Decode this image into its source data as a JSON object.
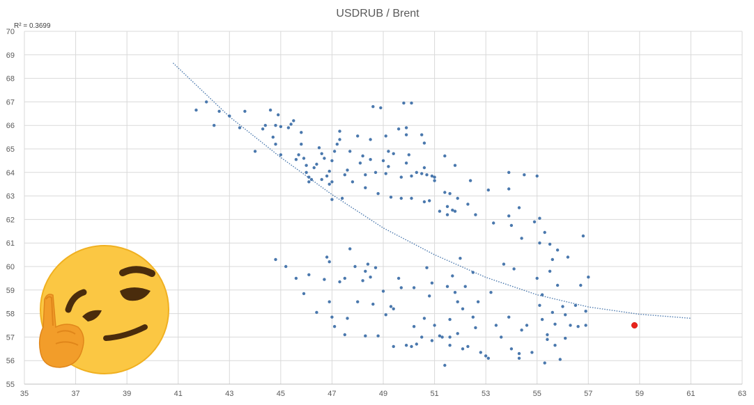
{
  "chart_data": {
    "type": "scatter",
    "title": "USDRUB / Brent",
    "annotation": "R² = 0.3699",
    "xlabel": "",
    "ylabel": "",
    "xlim": [
      35,
      63
    ],
    "ylim": [
      55,
      70
    ],
    "x_ticks": [
      35,
      37,
      39,
      41,
      43,
      45,
      47,
      49,
      51,
      53,
      55,
      57,
      59,
      61,
      63
    ],
    "y_ticks": [
      55,
      56,
      57,
      58,
      59,
      60,
      61,
      62,
      63,
      64,
      65,
      66,
      67,
      68,
      69,
      70
    ],
    "grid": true,
    "legend": "none",
    "colors": {
      "points": "#4a78ad",
      "trendline": "#4a78ad",
      "highlight": "#e8231b",
      "grid": "#d9d9d9"
    },
    "trendline": {
      "style": "dotted",
      "fit": "polynomial",
      "points": [
        [
          40.8,
          68.65
        ],
        [
          43,
          66.37
        ],
        [
          45,
          64.64
        ],
        [
          47,
          63.06
        ],
        [
          49,
          61.64
        ],
        [
          51,
          60.5
        ],
        [
          53,
          59.54
        ],
        [
          55,
          58.8
        ],
        [
          57,
          58.28
        ],
        [
          59,
          57.97
        ],
        [
          61,
          57.8
        ]
      ]
    },
    "highlight_point": {
      "x": 58.8,
      "y": 57.5
    },
    "points": [
      [
        41.7,
        66.65
      ],
      [
        42.1,
        67.0
      ],
      [
        42.4,
        66.0
      ],
      [
        42.6,
        66.6
      ],
      [
        43.0,
        66.4
      ],
      [
        43.4,
        65.9
      ],
      [
        43.6,
        66.6
      ],
      [
        44.0,
        64.9
      ],
      [
        44.3,
        65.85
      ],
      [
        44.4,
        66.0
      ],
      [
        44.6,
        66.65
      ],
      [
        44.7,
        65.5
      ],
      [
        44.8,
        65.2
      ],
      [
        44.8,
        66.0
      ],
      [
        44.9,
        66.45
      ],
      [
        45.0,
        65.95
      ],
      [
        45.0,
        64.75
      ],
      [
        45.3,
        65.9
      ],
      [
        45.4,
        66.05
      ],
      [
        45.5,
        66.2
      ],
      [
        45.6,
        64.55
      ],
      [
        45.7,
        64.75
      ],
      [
        45.8,
        65.2
      ],
      [
        45.8,
        65.7
      ],
      [
        45.9,
        64.6
      ],
      [
        46.0,
        64.3
      ],
      [
        46.0,
        64.0
      ],
      [
        46.1,
        63.8
      ],
      [
        46.1,
        63.6
      ],
      [
        46.2,
        63.7
      ],
      [
        46.3,
        64.2
      ],
      [
        46.4,
        64.35
      ],
      [
        46.5,
        65.05
      ],
      [
        46.6,
        63.7
      ],
      [
        46.6,
        64.8
      ],
      [
        46.7,
        64.6
      ],
      [
        46.8,
        63.85
      ],
      [
        46.9,
        64.05
      ],
      [
        46.9,
        63.5
      ],
      [
        47.0,
        64.5
      ],
      [
        47.0,
        63.6
      ],
      [
        47.1,
        64.9
      ],
      [
        47.2,
        65.2
      ],
      [
        47.3,
        65.75
      ],
      [
        47.3,
        65.4
      ],
      [
        47.5,
        63.9
      ],
      [
        47.6,
        64.1
      ],
      [
        47.7,
        64.9
      ],
      [
        47.8,
        63.6
      ],
      [
        47.0,
        62.85
      ],
      [
        47.4,
        62.9
      ],
      [
        48.0,
        65.55
      ],
      [
        48.1,
        64.4
      ],
      [
        48.2,
        64.7
      ],
      [
        48.3,
        63.9
      ],
      [
        48.3,
        63.35
      ],
      [
        48.5,
        65.4
      ],
      [
        48.5,
        64.55
      ],
      [
        48.6,
        66.8
      ],
      [
        48.7,
        64.0
      ],
      [
        48.8,
        63.1
      ],
      [
        48.9,
        66.75
      ],
      [
        49.0,
        64.5
      ],
      [
        49.1,
        65.55
      ],
      [
        49.1,
        63.95
      ],
      [
        49.2,
        64.9
      ],
      [
        49.2,
        64.25
      ],
      [
        49.3,
        62.95
      ],
      [
        49.4,
        64.8
      ],
      [
        49.6,
        65.85
      ],
      [
        49.7,
        63.8
      ],
      [
        49.7,
        62.9
      ],
      [
        49.8,
        66.95
      ],
      [
        49.9,
        65.9
      ],
      [
        49.9,
        65.6
      ],
      [
        49.9,
        64.4
      ],
      [
        50.0,
        64.75
      ],
      [
        50.1,
        63.85
      ],
      [
        50.1,
        62.9
      ],
      [
        50.1,
        66.95
      ],
      [
        50.3,
        64.0
      ],
      [
        50.5,
        63.95
      ],
      [
        50.5,
        65.6
      ],
      [
        50.6,
        65.25
      ],
      [
        50.6,
        64.2
      ],
      [
        50.7,
        63.9
      ],
      [
        50.9,
        63.85
      ],
      [
        50.8,
        62.8
      ],
      [
        50.6,
        62.75
      ],
      [
        51.0,
        63.65
      ],
      [
        51.0,
        63.8
      ],
      [
        51.2,
        62.35
      ],
      [
        51.4,
        63.15
      ],
      [
        51.4,
        64.7
      ],
      [
        51.5,
        62.55
      ],
      [
        51.5,
        62.2
      ],
      [
        51.6,
        63.1
      ],
      [
        51.7,
        62.4
      ],
      [
        51.8,
        62.35
      ],
      [
        51.8,
        64.3
      ],
      [
        51.9,
        62.9
      ],
      [
        52.3,
        62.65
      ],
      [
        52.4,
        63.65
      ],
      [
        52.6,
        62.2
      ],
      [
        53.1,
        63.25
      ],
      [
        53.3,
        61.85
      ],
      [
        53.9,
        64.0
      ],
      [
        53.9,
        63.3
      ],
      [
        53.9,
        62.15
      ],
      [
        54.0,
        61.75
      ],
      [
        54.3,
        62.5
      ],
      [
        54.4,
        61.2
      ],
      [
        54.5,
        63.9
      ],
      [
        54.9,
        61.9
      ],
      [
        55.1,
        62.05
      ],
      [
        55.0,
        63.85
      ],
      [
        55.3,
        61.45
      ],
      [
        55.1,
        61.0
      ],
      [
        55.5,
        60.95
      ],
      [
        55.8,
        60.7
      ],
      [
        44.8,
        60.3
      ],
      [
        45.2,
        60.0
      ],
      [
        45.6,
        59.5
      ],
      [
        45.9,
        58.85
      ],
      [
        46.1,
        59.65
      ],
      [
        46.7,
        59.45
      ],
      [
        46.8,
        60.4
      ],
      [
        46.9,
        60.2
      ],
      [
        46.9,
        58.5
      ],
      [
        47.0,
        57.85
      ],
      [
        47.1,
        57.45
      ],
      [
        47.3,
        59.35
      ],
      [
        47.5,
        59.5
      ],
      [
        47.6,
        57.8
      ],
      [
        47.7,
        60.75
      ],
      [
        47.9,
        60.0
      ],
      [
        48.0,
        58.5
      ],
      [
        48.2,
        59.4
      ],
      [
        48.3,
        59.8
      ],
      [
        48.4,
        60.1
      ],
      [
        48.5,
        59.55
      ],
      [
        48.6,
        58.4
      ],
      [
        48.7,
        59.95
      ],
      [
        48.8,
        57.05
      ],
      [
        49.0,
        58.95
      ],
      [
        49.1,
        57.95
      ],
      [
        49.3,
        58.3
      ],
      [
        49.4,
        56.6
      ],
      [
        49.6,
        59.5
      ],
      [
        49.7,
        59.1
      ],
      [
        49.9,
        56.65
      ],
      [
        50.1,
        56.6
      ],
      [
        50.2,
        57.45
      ],
      [
        50.3,
        56.7
      ],
      [
        50.5,
        57.0
      ],
      [
        50.6,
        57.8
      ],
      [
        50.7,
        59.95
      ],
      [
        50.8,
        58.75
      ],
      [
        50.9,
        59.3
      ],
      [
        51.0,
        57.5
      ],
      [
        51.2,
        57.05
      ],
      [
        51.3,
        57.0
      ],
      [
        51.5,
        59.15
      ],
      [
        51.6,
        57.75
      ],
      [
        51.6,
        57.0
      ],
      [
        51.6,
        56.65
      ],
      [
        51.7,
        59.6
      ],
      [
        51.8,
        58.9
      ],
      [
        51.9,
        58.5
      ],
      [
        51.9,
        57.15
      ],
      [
        52.1,
        56.5
      ],
      [
        52.1,
        58.2
      ],
      [
        52.2,
        59.15
      ],
      [
        52.3,
        56.6
      ],
      [
        52.5,
        57.85
      ],
      [
        52.5,
        59.75
      ],
      [
        52.6,
        57.4
      ],
      [
        52.7,
        58.5
      ],
      [
        52.8,
        56.35
      ],
      [
        53.0,
        56.2
      ],
      [
        53.2,
        58.9
      ],
      [
        53.4,
        57.5
      ],
      [
        53.6,
        57.0
      ],
      [
        53.7,
        60.1
      ],
      [
        53.9,
        57.85
      ],
      [
        54.0,
        56.5
      ],
      [
        54.1,
        59.9
      ],
      [
        54.3,
        56.3
      ],
      [
        54.4,
        57.3
      ],
      [
        54.6,
        57.5
      ],
      [
        54.8,
        56.35
      ],
      [
        55.0,
        59.5
      ],
      [
        55.1,
        58.35
      ],
      [
        55.2,
        57.75
      ],
      [
        55.4,
        57.1
      ],
      [
        55.5,
        59.8
      ],
      [
        55.6,
        58.05
      ],
      [
        55.7,
        57.55
      ],
      [
        55.8,
        59.2
      ],
      [
        56.0,
        58.3
      ],
      [
        56.1,
        57.95
      ],
      [
        56.2,
        60.4
      ],
      [
        56.3,
        57.5
      ],
      [
        56.5,
        58.35
      ],
      [
        56.7,
        59.2
      ],
      [
        56.8,
        61.3
      ],
      [
        56.9,
        57.5
      ],
      [
        57.0,
        59.55
      ],
      [
        55.2,
        58.8
      ],
      [
        55.4,
        56.9
      ],
      [
        47.5,
        57.1
      ],
      [
        48.3,
        57.05
      ],
      [
        49.4,
        58.2
      ],
      [
        50.2,
        59.1
      ],
      [
        50.9,
        56.85
      ],
      [
        51.4,
        55.8
      ],
      [
        52.0,
        60.35
      ],
      [
        53.1,
        56.1
      ],
      [
        54.3,
        56.1
      ],
      [
        55.3,
        55.9
      ],
      [
        55.9,
        56.05
      ],
      [
        55.7,
        56.65
      ],
      [
        56.1,
        56.95
      ],
      [
        56.6,
        57.45
      ],
      [
        56.9,
        58.1
      ],
      [
        46.4,
        58.05
      ],
      [
        55.6,
        60.3
      ]
    ]
  }
}
